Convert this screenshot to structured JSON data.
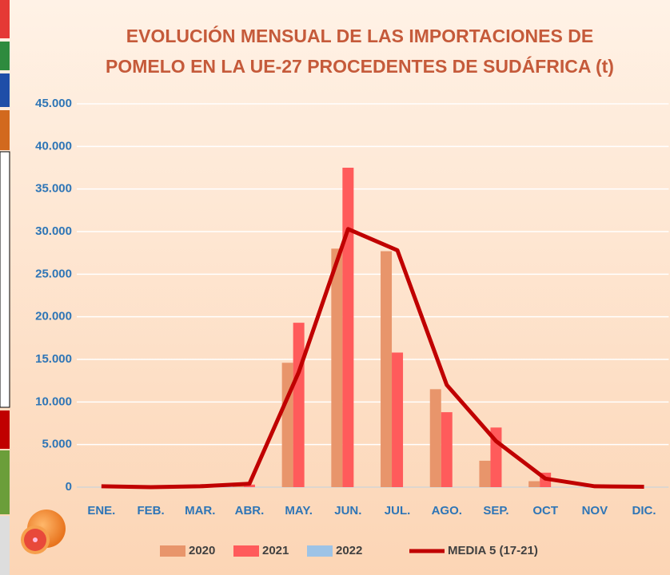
{
  "chart_data": {
    "type": "bar",
    "title": [
      "EVOLUCIÓN MENSUAL DE LAS IMPORTACIONES DE",
      "POMELO EN LA UE-27 PROCEDENTES DE SUDÁFRICA (t)"
    ],
    "categories": [
      "ENE.",
      "FEB.",
      "MAR.",
      "ABR.",
      "MAY.",
      "JUN.",
      "JUL.",
      "AGO.",
      "SEP.",
      "OCT",
      "NOV",
      "DIC."
    ],
    "series": [
      {
        "name": "2020",
        "type": "bar",
        "color": "#e8956b",
        "values": [
          0,
          0,
          0,
          300,
          14600,
          28000,
          27700,
          11500,
          3100,
          700,
          0,
          200
        ]
      },
      {
        "name": "2021",
        "type": "bar",
        "color": "#ff5b5b",
        "values": [
          0,
          0,
          0,
          300,
          19300,
          37500,
          15800,
          8800,
          7000,
          1700,
          0,
          0
        ]
      },
      {
        "name": "2022",
        "type": "bar",
        "color": "#9dc3e6",
        "values": [
          0,
          0,
          0,
          0,
          null,
          null,
          null,
          null,
          null,
          null,
          null,
          null
        ]
      },
      {
        "name": "MEDIA 5 (17-21)",
        "type": "line",
        "color": "#c00000",
        "values": [
          100,
          0,
          100,
          400,
          13500,
          30300,
          27800,
          12000,
          5400,
          1000,
          100,
          50
        ]
      }
    ],
    "ylim": [
      0,
      45000
    ],
    "yticks": [
      0,
      {
        "value": 5000,
        "label": "5.000"
      },
      {
        "value": 10000,
        "label": "10.000"
      },
      {
        "value": 15000,
        "label": "15.000"
      },
      {
        "value": 20000,
        "label": "20.000"
      },
      {
        "value": 25000,
        "label": "25.000"
      },
      {
        "value": 30000,
        "label": "30.000"
      },
      {
        "value": 35000,
        "label": "35.000"
      },
      {
        "value": 40000,
        "label": "40.000"
      },
      {
        "value": 45000,
        "label": "45.000"
      }
    ],
    "grid": true
  }
}
